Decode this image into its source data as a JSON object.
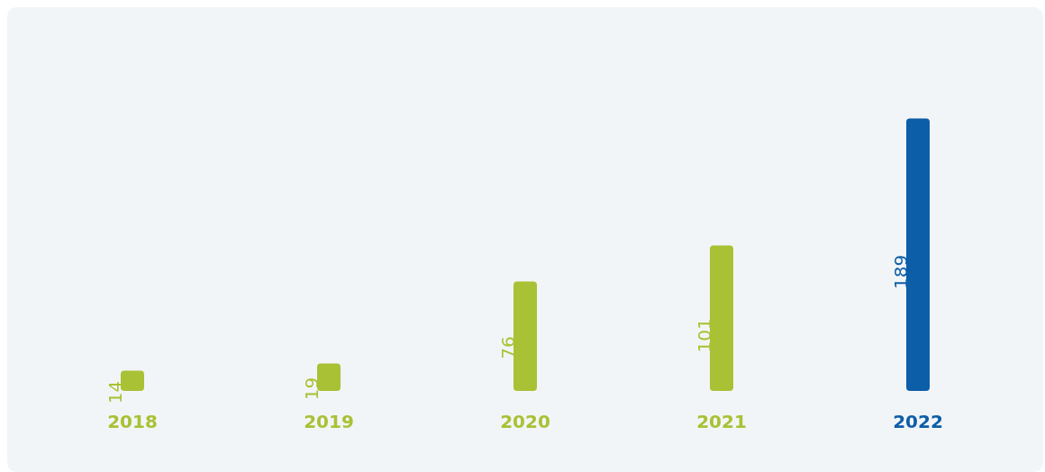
{
  "chart_data": {
    "type": "bar",
    "categories": [
      "2018",
      "2019",
      "2020",
      "2021",
      "2022"
    ],
    "values": [
      14,
      19,
      76,
      101,
      189
    ],
    "colors": [
      "#a9c134",
      "#a9c134",
      "#a9c134",
      "#a9c134",
      "#0d5ea8"
    ],
    "data_labels": true
  }
}
